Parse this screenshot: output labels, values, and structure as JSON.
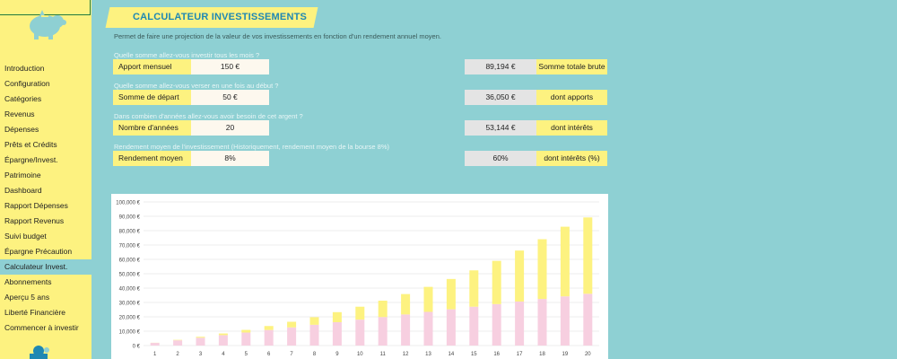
{
  "sidebar": {
    "items": [
      {
        "label": "Introduction",
        "active": false
      },
      {
        "label": "Configuration",
        "active": false
      },
      {
        "label": "Catégories",
        "active": false
      },
      {
        "label": "Revenus",
        "active": false
      },
      {
        "label": "Dépenses",
        "active": false
      },
      {
        "label": "Prêts et Crédits",
        "active": false
      },
      {
        "label": "Épargne/Invest.",
        "active": false
      },
      {
        "label": "Patrimoine",
        "active": false
      },
      {
        "label": "Dashboard",
        "active": false
      },
      {
        "label": "Rapport Dépenses",
        "active": false
      },
      {
        "label": "Rapport Revenus",
        "active": false
      },
      {
        "label": "Suivi budget",
        "active": false
      },
      {
        "label": "Épargne Précaution",
        "active": false
      },
      {
        "label": "Calculateur Invest.",
        "active": true
      },
      {
        "label": "Abonnements",
        "active": false
      },
      {
        "label": "Aperçu 5 ans",
        "active": false
      },
      {
        "label": "Liberté Financière",
        "active": false
      },
      {
        "label": "Commencer à investir",
        "active": false
      }
    ]
  },
  "header": {
    "title": "CALCULATEUR INVESTISSEMENTS",
    "description": "Permet de faire une projection de la valeur de vos investissements en fonction d'un rendement annuel moyen."
  },
  "inputs": [
    {
      "question": "Quelle somme allez-vous investir tous les mois ?",
      "label": "Apport mensuel",
      "value": "150 €"
    },
    {
      "question": "Quelle somme allez-vous verser en une fois au début ?",
      "label": "Somme de départ",
      "value": "50 €"
    },
    {
      "question": "Dans combien d'années allez-vous avoir besoin de cet argent ?",
      "label": "Nombre d'années",
      "value": "20"
    },
    {
      "question": "Rendement moyen de l'investissement (Historiquement, rendement moyen de la bourse 8%)",
      "label": "Rendement moyen",
      "value": "8%"
    }
  ],
  "results": [
    {
      "value": "89,194 €",
      "label": "Somme totale brute"
    },
    {
      "value": "36,050 €",
      "label": "dont apports"
    },
    {
      "value": "53,144 €",
      "label": "dont intérêts"
    },
    {
      "value": "60%",
      "label": "dont intérêts (%)"
    }
  ],
  "colors": {
    "background": "#8ed0d3",
    "sidebar": "#fdf280",
    "title": "#1f88b3",
    "apports_bar": "#f7cfe0",
    "interets_bar": "#fdf280"
  },
  "chart_data": {
    "type": "bar",
    "stacked": true,
    "categories": [
      "1",
      "2",
      "3",
      "4",
      "5",
      "6",
      "7",
      "8",
      "9",
      "10",
      "11",
      "12",
      "13",
      "14",
      "15",
      "16",
      "17",
      "18",
      "19",
      "20"
    ],
    "series": [
      {
        "values": [
          1850,
          3650,
          5450,
          7250,
          9050,
          10850,
          12650,
          14450,
          16250,
          18050,
          19850,
          21650,
          23450,
          25250,
          27050,
          28850,
          30650,
          32450,
          34250,
          36050
        ]
      },
      {
        "values": [
          80,
          300,
          650,
          1150,
          1850,
          2750,
          3900,
          5300,
          7000,
          9000,
          11400,
          14200,
          17400,
          21100,
          25300,
          30100,
          35500,
          41600,
          48500,
          53144
        ]
      }
    ],
    "yticks": [
      "0 €",
      "10,000 €",
      "20,000 €",
      "30,000 €",
      "40,000 €",
      "50,000 €",
      "60,000 €",
      "70,000 €",
      "80,000 €",
      "90,000 €",
      "100,000 €"
    ],
    "ylim": [
      0,
      100000
    ],
    "grid": true
  }
}
